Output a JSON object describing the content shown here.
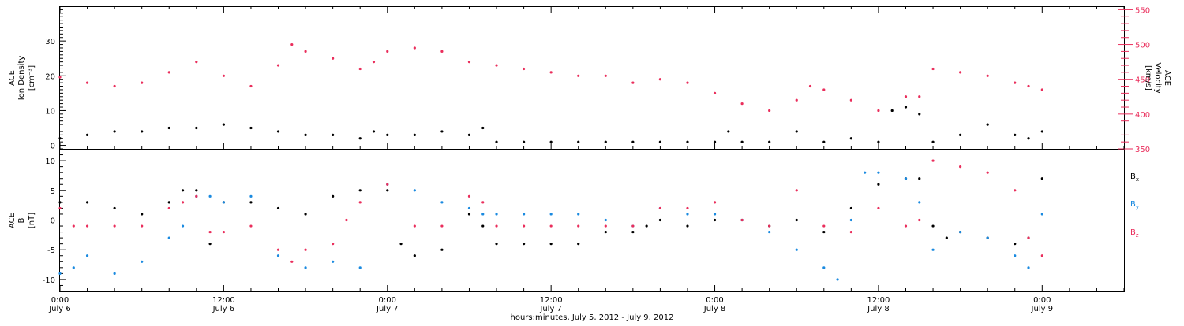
{
  "colors": {
    "black": "#000000",
    "pink": "#ea2e5c",
    "blue": "#1a8ae0"
  },
  "xlabel": "hours:minutes, July  5, 2012 - July  9, 2012",
  "x_ticks": [
    {
      "t": 0,
      "time": "0:00",
      "date": "July 6"
    },
    {
      "t": 12,
      "time": "12:00",
      "date": "July 6"
    },
    {
      "t": 24,
      "time": "0:00",
      "date": "July 7"
    },
    {
      "t": 36,
      "time": "12:00",
      "date": "July 7"
    },
    {
      "t": 48,
      "time": "0:00",
      "date": "July 8"
    },
    {
      "t": 60,
      "time": "12:00",
      "date": "July 8"
    },
    {
      "t": 72,
      "time": "0:00",
      "date": "July 9"
    }
  ],
  "chart_data": [
    {
      "type": "scatter",
      "title": "",
      "xlabel": "hours:minutes, July  5, 2012 - July  9, 2012",
      "ylabel": [
        "ACE",
        "Ion Density",
        "[cm⁻³]"
      ],
      "y2label": [
        "ACE",
        "Velocity",
        "[km/s]"
      ],
      "xlim": [
        0,
        78
      ],
      "ylim": [
        -1,
        40
      ],
      "y2lim": [
        350,
        555
      ],
      "yticks": [
        0,
        10,
        20,
        30
      ],
      "y2ticks": [
        350,
        400,
        450,
        500,
        550
      ],
      "series": [
        {
          "axis": "left",
          "color": "#000000",
          "x": [
            0,
            2,
            4,
            6,
            8,
            10,
            12,
            14,
            16,
            18,
            20,
            22,
            23,
            24,
            26,
            28,
            30,
            31,
            32,
            34,
            36,
            38,
            40,
            42,
            44,
            46,
            48,
            49,
            50,
            52,
            54,
            56,
            58,
            60,
            61,
            62,
            63,
            64,
            66,
            68,
            70,
            71,
            72
          ],
          "y": [
            2,
            3,
            4,
            4,
            5,
            5,
            6,
            5,
            4,
            3,
            3,
            2,
            4,
            3,
            3,
            4,
            3,
            5,
            1,
            1,
            1,
            1,
            1,
            1,
            1,
            1,
            1,
            4,
            1,
            1,
            4,
            1,
            2,
            1,
            10,
            11,
            9,
            1,
            3,
            6,
            3,
            2,
            4
          ]
        },
        {
          "axis": "right",
          "color": "#ea2e5c",
          "x": [
            0,
            2,
            4,
            6,
            8,
            10,
            12,
            14,
            16,
            17,
            18,
            20,
            22,
            23,
            24,
            26,
            28,
            30,
            32,
            34,
            36,
            38,
            40,
            42,
            44,
            46,
            48,
            50,
            52,
            54,
            55,
            56,
            58,
            60,
            62,
            63,
            64,
            66,
            68,
            70,
            71,
            72
          ],
          "y": [
            453,
            445,
            440,
            445,
            460,
            475,
            455,
            440,
            470,
            500,
            490,
            480,
            465,
            475,
            490,
            495,
            490,
            475,
            470,
            465,
            460,
            455,
            455,
            445,
            450,
            445,
            430,
            415,
            405,
            420,
            440,
            435,
            420,
            405,
            425,
            425,
            465,
            460,
            455,
            445,
            440,
            435
          ]
        }
      ]
    },
    {
      "type": "scatter",
      "title": "",
      "ylabel": [
        "ACE",
        "B",
        "[nT]"
      ],
      "xlim": [
        0,
        78
      ],
      "ylim": [
        -12,
        12
      ],
      "yticks": [
        -10,
        -5,
        0,
        5,
        10
      ],
      "legend": [
        "Bx",
        "By",
        "Bz"
      ],
      "legend_position": "right",
      "series": [
        {
          "name": "Bx",
          "color": "#000000",
          "x": [
            0,
            2,
            4,
            6,
            8,
            9,
            10,
            11,
            12,
            14,
            16,
            18,
            20,
            22,
            24,
            25,
            26,
            28,
            30,
            31,
            32,
            34,
            36,
            38,
            40,
            42,
            43,
            44,
            46,
            48,
            50,
            52,
            54,
            56,
            58,
            60,
            62,
            63,
            64,
            65,
            66,
            68,
            70,
            71,
            72
          ],
          "y": [
            3,
            3,
            2,
            1,
            3,
            5,
            5,
            -4,
            3,
            3,
            2,
            1,
            4,
            5,
            5,
            -4,
            -6,
            -5,
            1,
            -1,
            -4,
            -4,
            -4,
            -4,
            -2,
            -2,
            -1,
            0,
            -1,
            0,
            0,
            -1,
            0,
            -2,
            2,
            6,
            7,
            7,
            -1,
            -3,
            -2,
            -3,
            -4,
            -3,
            7
          ]
        },
        {
          "name": "By",
          "color": "#1a8ae0",
          "x": [
            0,
            1,
            2,
            4,
            6,
            8,
            9,
            10,
            11,
            12,
            14,
            16,
            18,
            20,
            22,
            24,
            26,
            28,
            30,
            31,
            32,
            34,
            36,
            38,
            40,
            42,
            44,
            46,
            48,
            50,
            52,
            54,
            56,
            57,
            58,
            59,
            60,
            62,
            63,
            64,
            66,
            68,
            70,
            71,
            72
          ],
          "y": [
            -9,
            -8,
            -6,
            -9,
            -7,
            -3,
            -1,
            4,
            4,
            3,
            4,
            -6,
            -8,
            -7,
            -8,
            6,
            5,
            3,
            2,
            1,
            1,
            1,
            1,
            1,
            0,
            -1,
            2,
            1,
            1,
            0,
            -2,
            -5,
            -8,
            -10,
            0,
            8,
            8,
            7,
            3,
            -5,
            -2,
            -3,
            -6,
            -8,
            1
          ]
        },
        {
          "name": "Bz",
          "color": "#ea2e5c",
          "x": [
            0,
            1,
            2,
            4,
            6,
            8,
            9,
            10,
            11,
            12,
            14,
            16,
            17,
            18,
            20,
            21,
            22,
            24,
            26,
            28,
            30,
            31,
            32,
            34,
            36,
            38,
            40,
            42,
            44,
            46,
            48,
            50,
            52,
            54,
            56,
            58,
            60,
            62,
            63,
            64,
            66,
            68,
            70,
            71,
            72
          ],
          "y": [
            2,
            -1,
            -1,
            -1,
            -1,
            2,
            3,
            4,
            -2,
            -2,
            -1,
            -5,
            -7,
            -5,
            -4,
            0,
            3,
            6,
            -1,
            -1,
            4,
            3,
            -1,
            -1,
            -1,
            -1,
            -1,
            -1,
            2,
            2,
            3,
            0,
            -1,
            5,
            -1,
            -2,
            2,
            -1,
            0,
            10,
            9,
            8,
            5,
            -3,
            -6
          ]
        }
      ]
    }
  ]
}
